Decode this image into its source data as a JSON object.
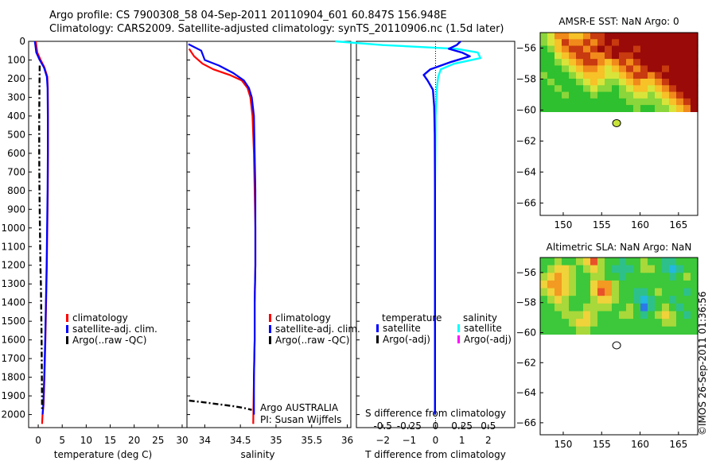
{
  "header": {
    "title_line1": "Argo profile: CS 7900308_58 04-Sep-2011 20110904_601 60.847S 156.948E",
    "title_line2": "Climatology: CARS2009. Satellite-adjusted climatology: synTS_20110906.nc (1.5d later)"
  },
  "colors": {
    "climatology": "#ff0000",
    "satellite": "#0000ff",
    "argo": "#000000",
    "sal_satellite": "#00ffff",
    "sal_argo": "#ff00ff"
  },
  "chart_data": [
    {
      "id": "temperature",
      "type": "line",
      "xlabel": "temperature (deg C)",
      "ylabel": "",
      "xlim": [
        -2,
        31
      ],
      "ylim": [
        2070,
        0
      ],
      "xticks": [
        0,
        5,
        10,
        15,
        20,
        25,
        30
      ],
      "yticks": [
        0,
        100,
        200,
        300,
        400,
        500,
        600,
        700,
        800,
        900,
        1000,
        1100,
        1200,
        1300,
        1400,
        1500,
        1600,
        1700,
        1800,
        1900,
        2000
      ],
      "series": [
        {
          "name": "climatology",
          "color": "#ff0000",
          "x": [
            -0.5,
            -0.2,
            0.5,
            1.3,
            1.9,
            2.0,
            2.05,
            2.05,
            2.0,
            1.9,
            1.8,
            1.65,
            1.5,
            1.3,
            1.1,
            0.9,
            0.8
          ],
          "y": [
            0,
            60,
            100,
            140,
            190,
            250,
            400,
            600,
            800,
            1000,
            1200,
            1400,
            1600,
            1800,
            1950,
            2000,
            2050
          ]
        },
        {
          "name": "satellite-adj. clim.",
          "color": "#0000ff",
          "x": [
            -0.7,
            -0.4,
            0.3,
            1.2,
            1.8,
            1.95,
            2.0,
            2.0,
            1.95,
            1.85,
            1.75,
            1.6,
            1.45,
            1.25,
            1.05,
            0.9
          ],
          "y": [
            0,
            60,
            100,
            140,
            190,
            250,
            400,
            600,
            800,
            1000,
            1200,
            1400,
            1600,
            1800,
            1950,
            2000
          ]
        },
        {
          "name": "Argo(..raw -QC)",
          "color": "#000000",
          "dashed": true,
          "x": [
            0.3,
            0.25,
            0.2,
            0.2,
            0.25,
            0.35,
            0.45,
            0.55,
            0.6,
            0.65,
            0.7,
            0.75,
            0.8
          ],
          "y": [
            130,
            250,
            400,
            600,
            800,
            1000,
            1200,
            1300,
            1400,
            1500,
            1600,
            1800,
            1980
          ]
        }
      ],
      "legend": [
        "climatology",
        "satellite-adj. clim.",
        "Argo(..raw -QC)"
      ]
    },
    {
      "id": "salinity",
      "type": "line",
      "xlabel": "salinity",
      "ylabel": "",
      "xlim": [
        33.75,
        36.05
      ],
      "ylim": [
        2070,
        0
      ],
      "xticks": [
        34,
        34.5,
        35,
        35.5,
        36
      ],
      "series": [
        {
          "name": "climatology",
          "color": "#ff0000",
          "x": [
            33.78,
            33.85,
            33.97,
            34.12,
            34.35,
            34.52,
            34.6,
            34.64,
            34.67,
            34.69,
            34.7,
            34.71,
            34.71,
            34.7,
            34.7,
            34.69,
            34.68
          ],
          "y": [
            40,
            80,
            120,
            150,
            180,
            210,
            250,
            300,
            400,
            600,
            800,
            1000,
            1200,
            1400,
            1600,
            1800,
            2050
          ]
        },
        {
          "name": "satellite-adj. clim.",
          "color": "#0000ff",
          "x": [
            33.77,
            33.95,
            34.0,
            34.2,
            34.4,
            34.55,
            34.62,
            34.66,
            34.69,
            34.7,
            34.71,
            34.71,
            34.71,
            34.7,
            34.7,
            34.69,
            34.69
          ],
          "y": [
            15,
            50,
            100,
            130,
            170,
            210,
            250,
            300,
            400,
            600,
            800,
            1000,
            1200,
            1400,
            1600,
            1800,
            2000
          ]
        },
        {
          "name": "Argo(..raw -QC)",
          "color": "#000000",
          "dashed": true,
          "x": [
            33.78,
            34.0,
            34.2,
            34.4,
            34.55,
            34.66
          ],
          "y": [
            1925,
            1935,
            1945,
            1955,
            1965,
            1975
          ]
        }
      ],
      "legend": [
        "climatology",
        "satellite-adj. clim.",
        "Argo(..raw -QC)"
      ],
      "annotation_line1": "Argo AUSTRALIA",
      "annotation_line2": "PI: Susan Wijffels"
    },
    {
      "id": "difference",
      "type": "line",
      "xlabel": "T difference from climatology",
      "xlabel_top": "S difference from climatology",
      "xlim": [
        -3,
        3
      ],
      "ylim": [
        2070,
        0
      ],
      "xticks": [
        -2,
        -1,
        0,
        1,
        2
      ],
      "xticks_top": [
        "-0.5",
        "-0.25",
        "0",
        "0.25",
        "0.5"
      ],
      "series": [
        {
          "name": "temperature satellite",
          "color": "#0000ff",
          "x": [
            0.95,
            0.8,
            0.5,
            1.0,
            1.3,
            0.6,
            -0.2,
            -0.45,
            -0.3,
            -0.1,
            -0.05,
            -0.03,
            -0.02,
            -0.02,
            -0.02,
            -0.02,
            -0.02
          ],
          "y": [
            0,
            20,
            40,
            60,
            80,
            110,
            150,
            180,
            210,
            260,
            350,
            500,
            800,
            1000,
            1400,
            1800,
            2000
          ]
        },
        {
          "name": "salinity satellite",
          "color": "#00ffff",
          "x": [
            -3.8,
            -2.0,
            0.8,
            1.6,
            1.7,
            0.7,
            0.2,
            0.1,
            0.05,
            0.0,
            -0.02,
            -0.02,
            -0.02,
            -0.02
          ],
          "y": [
            0,
            20,
            40,
            60,
            90,
            120,
            150,
            190,
            250,
            400,
            800,
            1200,
            1600,
            2000
          ]
        }
      ],
      "legend_temp_title": "temperature",
      "legend_sal_title": "salinity",
      "legend_temp": [
        "satellite",
        "Argo(-adj)"
      ],
      "legend_sal": [
        "satellite",
        "Argo(-adj)"
      ]
    },
    {
      "id": "sst_map",
      "type": "heatmap",
      "title": "AMSR-E SST: NaN Argo: 0",
      "xlim": [
        147,
        167.5
      ],
      "ylim": [
        -66.8,
        -55
      ],
      "xticks": [
        150,
        155,
        160,
        165
      ],
      "yticks": [
        -56,
        -58,
        -60,
        -62,
        -64,
        -66
      ],
      "marker": {
        "lon": 156.948,
        "lat": -60.847,
        "color": "#c8e43a"
      },
      "data_extent_lat": [
        -60.1,
        -55
      ],
      "palette": [
        "#2ec02e",
        "#8bd63a",
        "#d8e43a",
        "#f7c128",
        "#f08a1a",
        "#c83a0f",
        "#9a0a08"
      ],
      "grid": [
        [
          1,
          2,
          4,
          4,
          3,
          3,
          4,
          5,
          5,
          6,
          6,
          6,
          6,
          6,
          6,
          6,
          6,
          6,
          6,
          6,
          6,
          6
        ],
        [
          1,
          2,
          3,
          5,
          4,
          4,
          5,
          4,
          5,
          6,
          5,
          6,
          6,
          6,
          6,
          6,
          6,
          6,
          6,
          6,
          6,
          6
        ],
        [
          0,
          1,
          3,
          4,
          5,
          5,
          4,
          5,
          6,
          5,
          6,
          6,
          6,
          5,
          6,
          6,
          6,
          6,
          6,
          6,
          6,
          6
        ],
        [
          0,
          0,
          2,
          3,
          4,
          5,
          5,
          4,
          4,
          5,
          6,
          5,
          5,
          6,
          6,
          6,
          6,
          6,
          6,
          6,
          6,
          6
        ],
        [
          0,
          0,
          1,
          2,
          3,
          4,
          5,
          5,
          4,
          3,
          4,
          5,
          4,
          5,
          6,
          6,
          6,
          6,
          6,
          6,
          6,
          6
        ],
        [
          0,
          0,
          0,
          1,
          2,
          3,
          4,
          4,
          3,
          2,
          3,
          4,
          5,
          4,
          5,
          6,
          6,
          5,
          6,
          6,
          6,
          6
        ],
        [
          1,
          0,
          0,
          0,
          1,
          2,
          3,
          3,
          3,
          2,
          2,
          3,
          4,
          5,
          5,
          4,
          5,
          6,
          6,
          6,
          6,
          6
        ],
        [
          0,
          1,
          0,
          0,
          0,
          1,
          2,
          3,
          2,
          1,
          1,
          2,
          3,
          4,
          3,
          3,
          4,
          5,
          6,
          6,
          6,
          6
        ],
        [
          0,
          0,
          1,
          0,
          0,
          0,
          1,
          2,
          1,
          1,
          0,
          1,
          2,
          3,
          3,
          2,
          3,
          4,
          5,
          6,
          6,
          6
        ],
        [
          0,
          0,
          0,
          1,
          0,
          0,
          0,
          1,
          0,
          0,
          0,
          1,
          1,
          2,
          2,
          1,
          2,
          3,
          4,
          5,
          6,
          6
        ],
        [
          0,
          0,
          0,
          0,
          0,
          0,
          0,
          0,
          0,
          0,
          0,
          0,
          1,
          1,
          1,
          1,
          1,
          2,
          3,
          4,
          5,
          6
        ],
        [
          0,
          0,
          0,
          0,
          0,
          0,
          0,
          0,
          0,
          0,
          0,
          0,
          0,
          1,
          0,
          0,
          1,
          1,
          2,
          3,
          4,
          6
        ]
      ]
    },
    {
      "id": "sla_map",
      "type": "heatmap",
      "title": "Altimetric SLA: NaN Argo: NaN",
      "xlim": [
        147,
        167.5
      ],
      "ylim": [
        -66.8,
        -55
      ],
      "xticks": [
        150,
        155,
        160,
        165
      ],
      "yticks": [
        -56,
        -58,
        -60,
        -62,
        -64,
        -66
      ],
      "marker": {
        "lon": 156.948,
        "lat": -60.847,
        "color": "#ffffff"
      },
      "data_extent_lat": [
        -60.1,
        -55
      ],
      "palette": [
        "#1a3ad8",
        "#2a7ae8",
        "#22b8e0",
        "#2ec08a",
        "#3cc83a",
        "#a8d83a",
        "#f0d23a",
        "#f29a22",
        "#e8522a"
      ],
      "grid": [
        [
          4,
          4,
          5,
          4,
          4,
          5,
          6,
          8,
          5,
          4,
          4,
          3,
          4,
          4,
          5,
          4,
          4,
          3,
          3,
          4,
          4,
          4
        ],
        [
          4,
          5,
          6,
          6,
          5,
          4,
          5,
          6,
          5,
          4,
          3,
          3,
          3,
          4,
          5,
          5,
          4,
          3,
          2,
          3,
          4,
          4
        ],
        [
          5,
          6,
          7,
          6,
          5,
          4,
          4,
          5,
          5,
          4,
          4,
          3,
          4,
          4,
          4,
          4,
          4,
          4,
          3,
          4,
          5,
          4
        ],
        [
          6,
          7,
          7,
          6,
          5,
          4,
          4,
          6,
          7,
          7,
          5,
          4,
          4,
          4,
          4,
          4,
          4,
          4,
          4,
          4,
          4,
          4
        ],
        [
          5,
          6,
          7,
          6,
          5,
          4,
          4,
          6,
          8,
          7,
          5,
          4,
          4,
          3,
          3,
          4,
          5,
          4,
          4,
          4,
          3,
          4
        ],
        [
          4,
          5,
          6,
          5,
          4,
          4,
          4,
          5,
          6,
          6,
          5,
          4,
          4,
          3,
          2,
          3,
          4,
          4,
          3,
          4,
          4,
          4
        ],
        [
          4,
          4,
          5,
          5,
          4,
          4,
          5,
          5,
          5,
          5,
          4,
          4,
          5,
          4,
          1,
          3,
          4,
          5,
          4,
          3,
          4,
          4
        ],
        [
          4,
          4,
          4,
          5,
          5,
          5,
          6,
          5,
          4,
          4,
          4,
          5,
          5,
          4,
          3,
          4,
          5,
          6,
          5,
          4,
          3,
          4
        ],
        [
          4,
          4,
          4,
          4,
          5,
          6,
          6,
          5,
          4,
          4,
          4,
          4,
          4,
          4,
          4,
          4,
          4,
          5,
          5,
          4,
          4,
          4
        ],
        [
          4,
          4,
          4,
          4,
          4,
          5,
          5,
          4,
          4,
          4,
          4,
          4,
          4,
          4,
          4,
          4,
          4,
          4,
          4,
          4,
          4,
          4
        ]
      ]
    }
  ],
  "credit": "©IMOS 26-Sep-2011 01:36:56"
}
